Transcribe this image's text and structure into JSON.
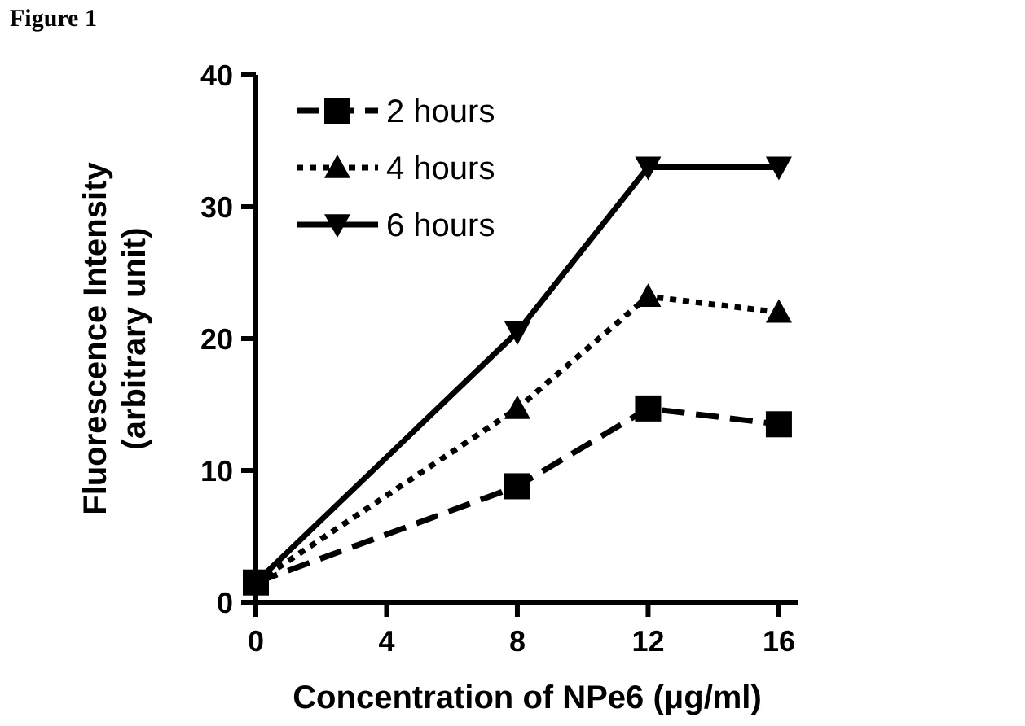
{
  "chart_data": {
    "type": "line",
    "title": "Figure 1",
    "xlabel": "Concentration of NPe6 (μg/ml)",
    "ylabel": "Fluorescence Intensity\n(arbitrary unit)",
    "x": [
      0,
      8,
      12,
      16
    ],
    "xlim": [
      0,
      16.6
    ],
    "xticks": [
      0,
      4,
      8,
      12,
      16
    ],
    "ylim": [
      0,
      40
    ],
    "yticks": [
      0,
      10,
      20,
      30,
      40
    ],
    "grid": false,
    "legend": "top left",
    "series": [
      {
        "name": "2 hours",
        "color": "#000000",
        "marker": "square",
        "line_style": "dashed",
        "values": [
          1.5,
          8.8,
          14.7,
          13.5
        ]
      },
      {
        "name": "4 hours",
        "color": "#000000",
        "marker": "triangle",
        "line_style": "dotted",
        "values": [
          1.5,
          14.7,
          23.2,
          22
        ]
      },
      {
        "name": "6 hours",
        "color": "#000000",
        "marker": "triangle-down",
        "line_style": "solid",
        "values": [
          1.5,
          20.5,
          33,
          33
        ]
      }
    ]
  }
}
